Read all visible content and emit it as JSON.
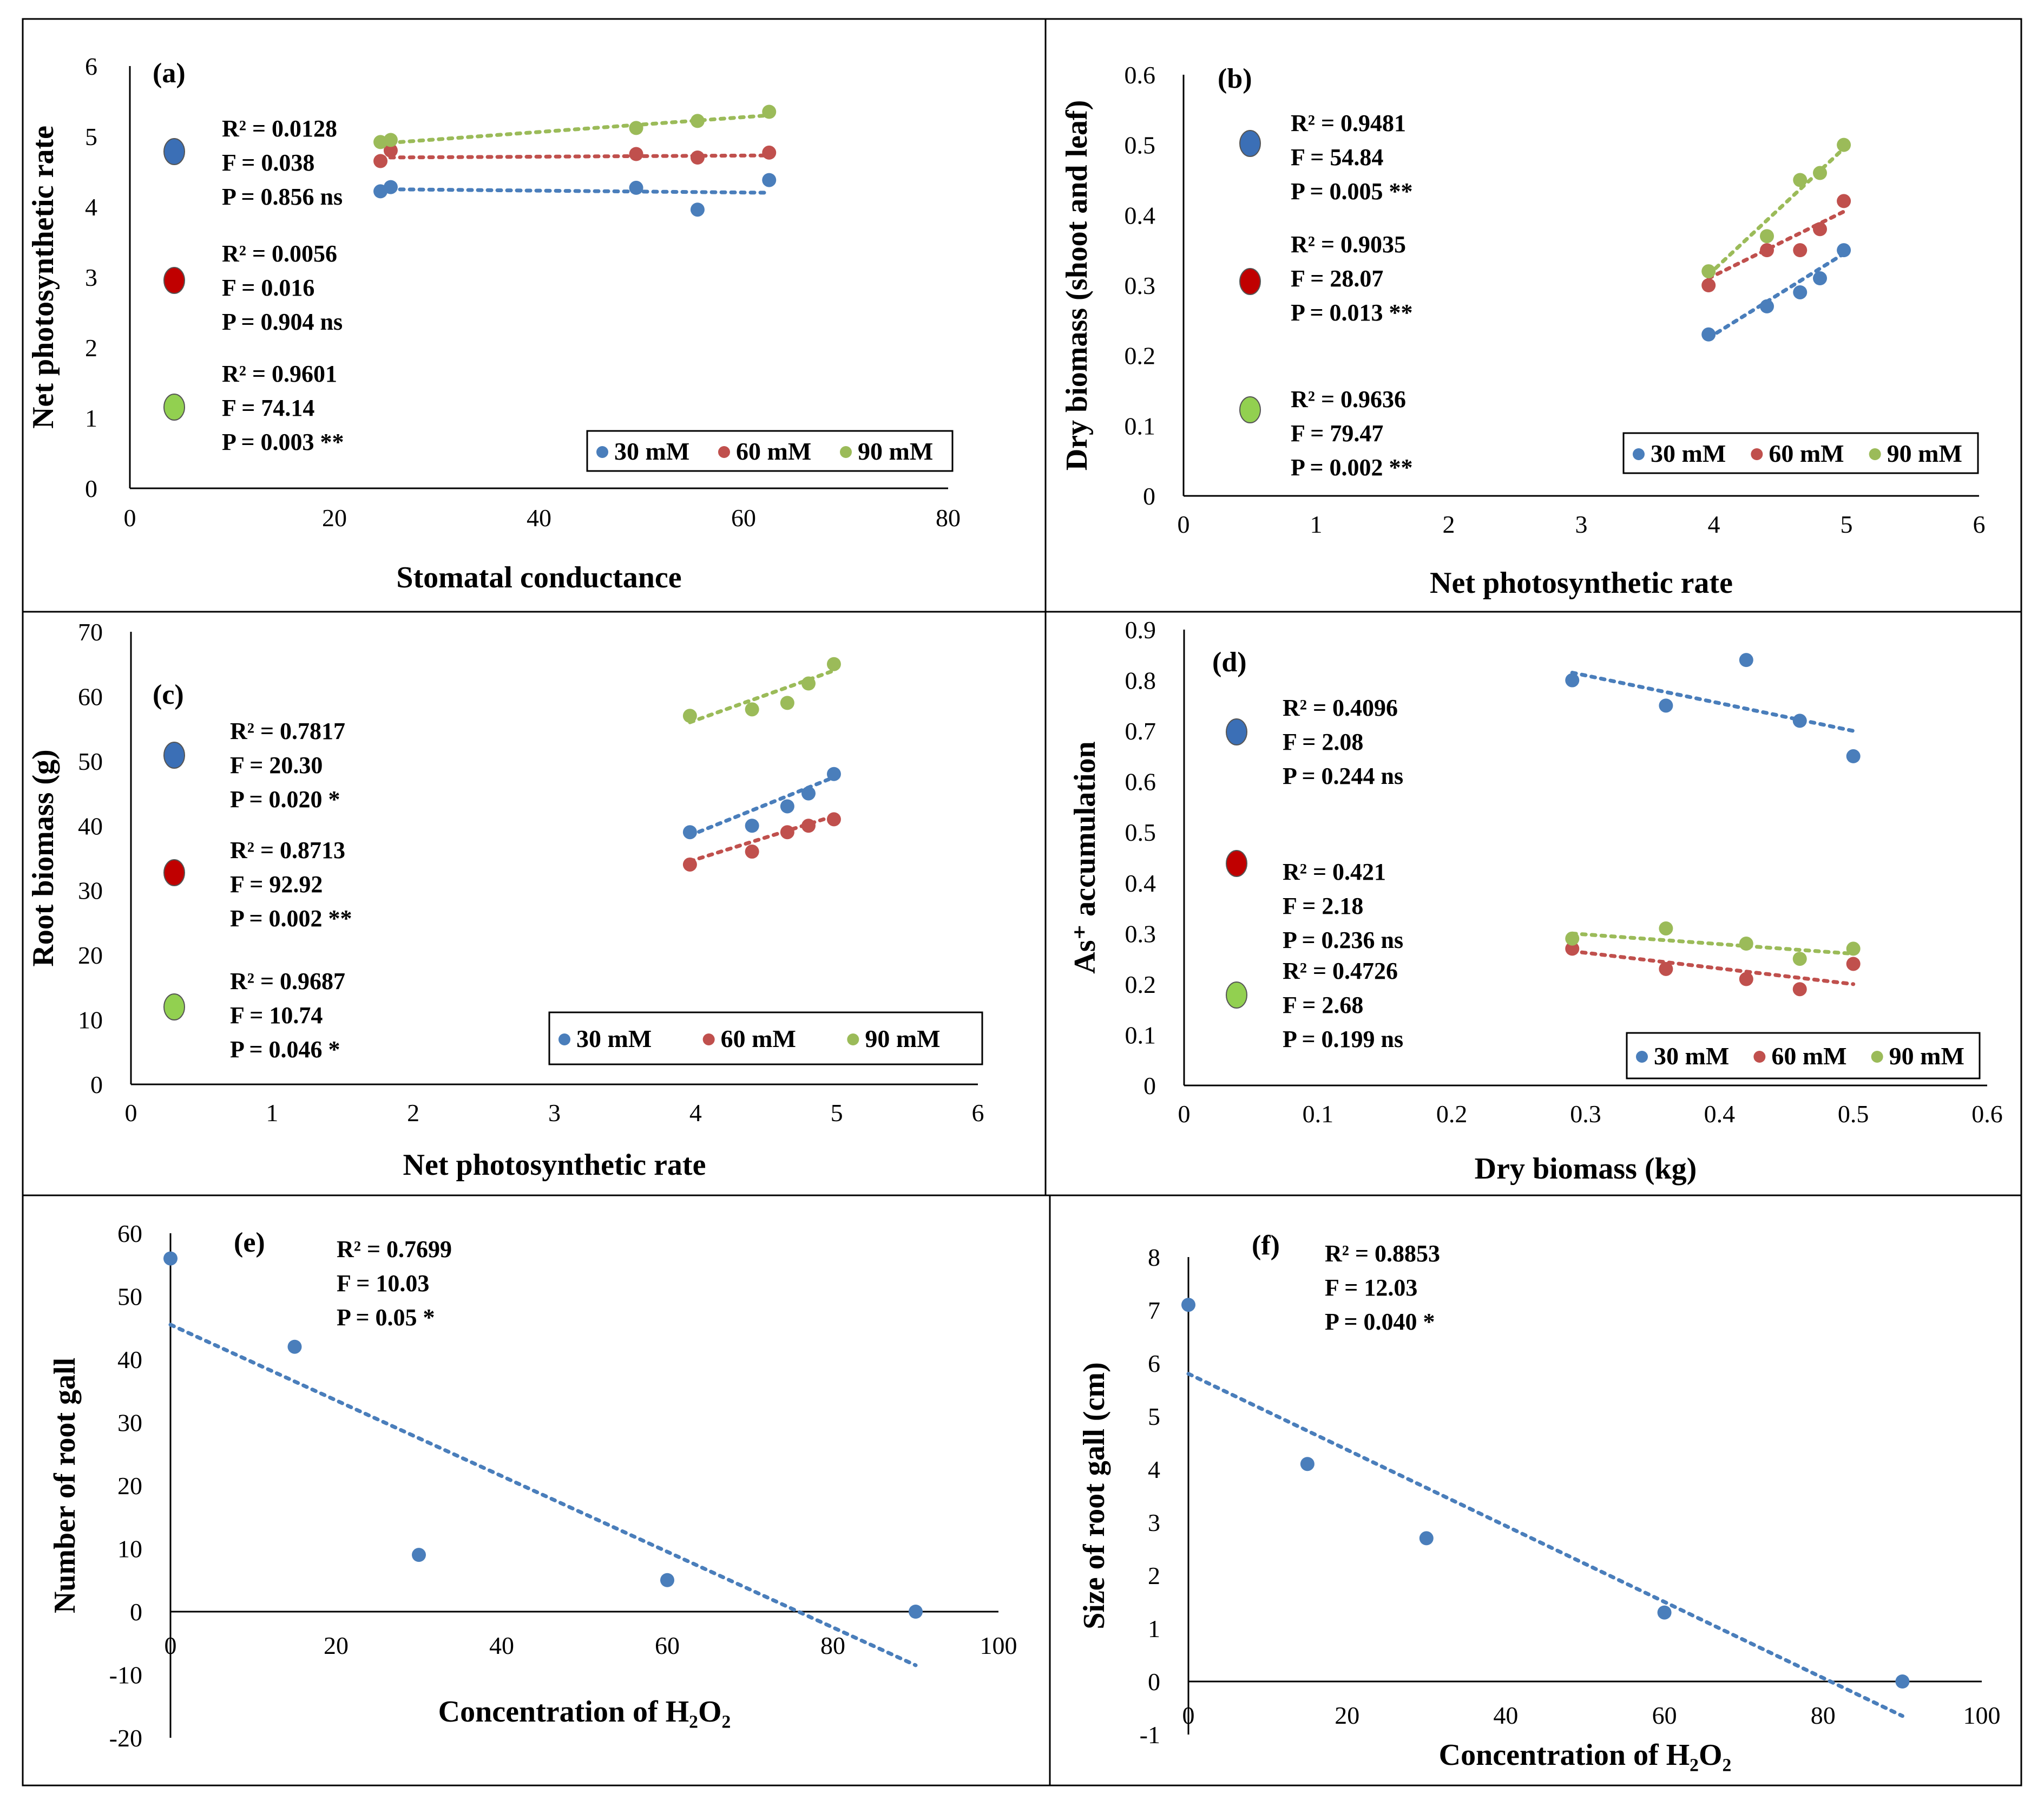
{
  "colors": {
    "s30": "#4a7ebb",
    "s60": "#c0504d",
    "s90": "#9bbb59",
    "key30": "#3b6fb6",
    "key60": "#c00000",
    "key90": "#92d050",
    "single": "#4a7ebb"
  },
  "chart_data": [
    {
      "id": "a",
      "type": "scatter",
      "panel_label": "(a)",
      "xlabel": "Stomatal conductance",
      "ylabel": "Net photosynthetic rate",
      "xlim": [
        0,
        80
      ],
      "ylim": [
        0,
        6
      ],
      "xticks": [
        "0",
        "20",
        "40",
        "60",
        "80"
      ],
      "yticks": [
        "0",
        "1",
        "2",
        "3",
        "4",
        "5",
        "6"
      ],
      "series": [
        {
          "name": "30 mM",
          "x": [
            24.5,
            25.5,
            49.5,
            55.5,
            62.5
          ],
          "y": [
            4.22,
            4.28,
            4.27,
            3.96,
            4.38
          ],
          "trend": [
            [
              24.5,
              4.25
            ],
            [
              62.5,
              4.2
            ]
          ]
        },
        {
          "name": "60 mM",
          "x": [
            24.5,
            25.5,
            49.5,
            55.5,
            62.5
          ],
          "y": [
            4.65,
            4.8,
            4.75,
            4.7,
            4.77
          ],
          "trend": [
            [
              24.5,
              4.7
            ],
            [
              62.5,
              4.73
            ]
          ]
        },
        {
          "name": "90 mM",
          "x": [
            24.5,
            25.5,
            49.5,
            55.5,
            62.5
          ],
          "y": [
            4.92,
            4.95,
            5.12,
            5.22,
            5.35
          ],
          "trend": [
            [
              24.5,
              4.9
            ],
            [
              62.5,
              5.3
            ]
          ]
        }
      ],
      "stats": [
        {
          "r2": "R² = 0.0128",
          "f": "F = 0.038",
          "p": "P = 0.856 ns"
        },
        {
          "r2": "R² = 0.0056",
          "f": "F = 0.016",
          "p": "P = 0.904 ns"
        },
        {
          "r2": "R² = 0.9601",
          "f": "F = 74.14",
          "p": "P = 0.003 **"
        }
      ],
      "legend": [
        "30 mM",
        "60 mM",
        "90 mM"
      ]
    },
    {
      "id": "b",
      "type": "scatter",
      "panel_label": "(b)",
      "xlabel": "Net photosynthetic rate",
      "ylabel": "Dry biomass (shoot and leaf)",
      "xlim": [
        0,
        6
      ],
      "ylim": [
        0,
        0.6
      ],
      "xticks": [
        "0",
        "1",
        "2",
        "3",
        "4",
        "5",
        "6"
      ],
      "yticks": [
        "0",
        "0.1",
        "0.2",
        "0.3",
        "0.4",
        "0.5",
        "0.6"
      ],
      "series": [
        {
          "name": "30 mM",
          "x": [
            3.96,
            4.4,
            4.65,
            4.8,
            4.98
          ],
          "y": [
            0.23,
            0.27,
            0.29,
            0.31,
            0.35
          ],
          "trend": [
            [
              3.96,
              0.225
            ],
            [
              4.98,
              0.345
            ]
          ]
        },
        {
          "name": "60 mM",
          "x": [
            3.96,
            4.4,
            4.65,
            4.8,
            4.98
          ],
          "y": [
            0.3,
            0.35,
            0.35,
            0.38,
            0.42
          ],
          "trend": [
            [
              3.96,
              0.31
            ],
            [
              4.98,
              0.405
            ]
          ]
        },
        {
          "name": "90 mM",
          "x": [
            3.96,
            4.4,
            4.65,
            4.8,
            4.98
          ],
          "y": [
            0.32,
            0.37,
            0.45,
            0.46,
            0.5
          ],
          "trend": [
            [
              3.96,
              0.315
            ],
            [
              4.98,
              0.495
            ]
          ]
        }
      ],
      "stats": [
        {
          "r2": "R² = 0.9481",
          "f": "F = 54.84",
          "p": "P = 0.005 **"
        },
        {
          "r2": "R² = 0.9035",
          "f": "F = 28.07",
          "p": "P = 0.013 **"
        },
        {
          "r2": "R² = 0.9636",
          "f": "F = 79.47",
          "p": "P = 0.002 **"
        }
      ],
      "legend": [
        "30 mM",
        "60 mM",
        "90 mM"
      ]
    },
    {
      "id": "c",
      "type": "scatter",
      "panel_label": "(c)",
      "xlabel": "Net photosynthetic rate",
      "ylabel": "Root biomass (g)",
      "xlim": [
        0,
        6
      ],
      "ylim": [
        0,
        70
      ],
      "xticks": [
        "0",
        "1",
        "2",
        "3",
        "4",
        "5",
        "6"
      ],
      "yticks": [
        "0",
        "10",
        "20",
        "30",
        "40",
        "50",
        "60",
        "70"
      ],
      "series": [
        {
          "name": "30 mM",
          "x": [
            3.96,
            4.4,
            4.65,
            4.8,
            4.98
          ],
          "y": [
            39,
            40,
            43,
            45,
            48
          ],
          "trend": [
            [
              3.96,
              38.5
            ],
            [
              4.98,
              47.5
            ]
          ]
        },
        {
          "name": "60 mM",
          "x": [
            3.96,
            4.4,
            4.65,
            4.8,
            4.98
          ],
          "y": [
            34,
            36,
            39,
            40,
            41
          ],
          "trend": [
            [
              3.96,
              34.5
            ],
            [
              4.98,
              41.5
            ]
          ]
        },
        {
          "name": "90 mM",
          "x": [
            3.96,
            4.4,
            4.65,
            4.8,
            4.98
          ],
          "y": [
            57,
            58,
            59,
            62,
            65
          ],
          "trend": [
            [
              3.96,
              56
            ],
            [
              4.98,
              64
            ]
          ]
        }
      ],
      "stats": [
        {
          "r2": "R² = 0.7817",
          "f": "F = 20.30",
          "p": "P  = 0.020 *"
        },
        {
          "r2": "R² = 0.8713",
          "f": "F = 92.92",
          "p": "P = 0.002 **"
        },
        {
          "r2": "R² = 0.9687",
          "f": "F = 10.74",
          "p": "P = 0.046 *"
        }
      ],
      "legend": [
        "30 mM",
        "60 mM",
        "90 mM"
      ]
    },
    {
      "id": "d",
      "type": "scatter",
      "panel_label": "(d)",
      "xlabel": "Dry biomass (kg)",
      "ylabel": "As⁺ accumulation",
      "xlim": [
        0,
        0.6
      ],
      "ylim": [
        0,
        0.9
      ],
      "xticks": [
        "0",
        "0.1",
        "0.2",
        "0.3",
        "0.4",
        "0.5",
        "0.6"
      ],
      "yticks": [
        "0",
        "0.1",
        "0.2",
        "0.3",
        "0.4",
        "0.5",
        "0.6",
        "0.7",
        "0.8",
        "0.9"
      ],
      "series": [
        {
          "name": "30 mM",
          "x": [
            0.29,
            0.36,
            0.42,
            0.46,
            0.5
          ],
          "y": [
            0.8,
            0.75,
            0.84,
            0.72,
            0.65
          ],
          "trend": [
            [
              0.29,
              0.815
            ],
            [
              0.5,
              0.7
            ]
          ]
        },
        {
          "name": "60 mM",
          "x": [
            0.29,
            0.36,
            0.42,
            0.46,
            0.5
          ],
          "y": [
            0.27,
            0.23,
            0.21,
            0.19,
            0.24
          ],
          "trend": [
            [
              0.29,
              0.265
            ],
            [
              0.5,
              0.2
            ]
          ]
        },
        {
          "name": "90 mM",
          "x": [
            0.29,
            0.36,
            0.42,
            0.46,
            0.5
          ],
          "y": [
            0.29,
            0.31,
            0.28,
            0.25,
            0.27
          ],
          "trend": [
            [
              0.29,
              0.3
            ],
            [
              0.5,
              0.26
            ]
          ]
        }
      ],
      "stats": [
        {
          "r2": "R² = 0.4096",
          "f": "F = 2.08",
          "p": "P = 0.244 ns"
        },
        {
          "r2": "R² = 0.421",
          "f": "F = 2.18",
          "p": "P = 0.236 ns"
        },
        {
          "r2": "R² = 0.4726",
          "f": "F = 2.68",
          "p": "P = 0.199 ns"
        }
      ],
      "legend": [
        "30 mM",
        "60 mM",
        "90 mM"
      ]
    },
    {
      "id": "e",
      "type": "scatter",
      "panel_label": "(e)",
      "xlabel": "Concentration of H₂O₂",
      "ylabel": "Number of root gall",
      "xlim": [
        0,
        100
      ],
      "ylim": [
        -20,
        60
      ],
      "xticks": [
        "0",
        "20",
        "40",
        "60",
        "80",
        "100"
      ],
      "yticks": [
        "-20",
        "-10",
        "0",
        "10",
        "20",
        "30",
        "40",
        "50",
        "60"
      ],
      "series": [
        {
          "name": "",
          "x": [
            0,
            15,
            30,
            60,
            90
          ],
          "y": [
            56,
            42,
            9,
            5,
            0
          ],
          "trend": [
            [
              0,
              45.5
            ],
            [
              90,
              -8.5
            ]
          ]
        }
      ],
      "stats": [
        {
          "r2": "R² = 0.7699",
          "f": "F = 10.03",
          "p": "P = 0.05 *"
        }
      ]
    },
    {
      "id": "f",
      "type": "scatter",
      "panel_label": "(f)",
      "xlabel": "Concentration of H₂O₂",
      "ylabel": "Size of root gall (cm)",
      "xlim": [
        0,
        100
      ],
      "ylim": [
        -1,
        8
      ],
      "xticks": [
        "0",
        "20",
        "40",
        "60",
        "80",
        "100"
      ],
      "yticks": [
        "-1",
        "0",
        "1",
        "2",
        "3",
        "4",
        "5",
        "6",
        "7",
        "8"
      ],
      "series": [
        {
          "name": "",
          "x": [
            0,
            15,
            30,
            60,
            90
          ],
          "y": [
            7.1,
            4.1,
            2.7,
            1.3,
            0
          ],
          "trend": [
            [
              0,
              5.8
            ],
            [
              90,
              -0.65
            ]
          ]
        }
      ],
      "stats": [
        {
          "r2": "R² = 0.8853",
          "f": "F = 12.03",
          "p": "P = 0.040 *"
        }
      ]
    }
  ]
}
